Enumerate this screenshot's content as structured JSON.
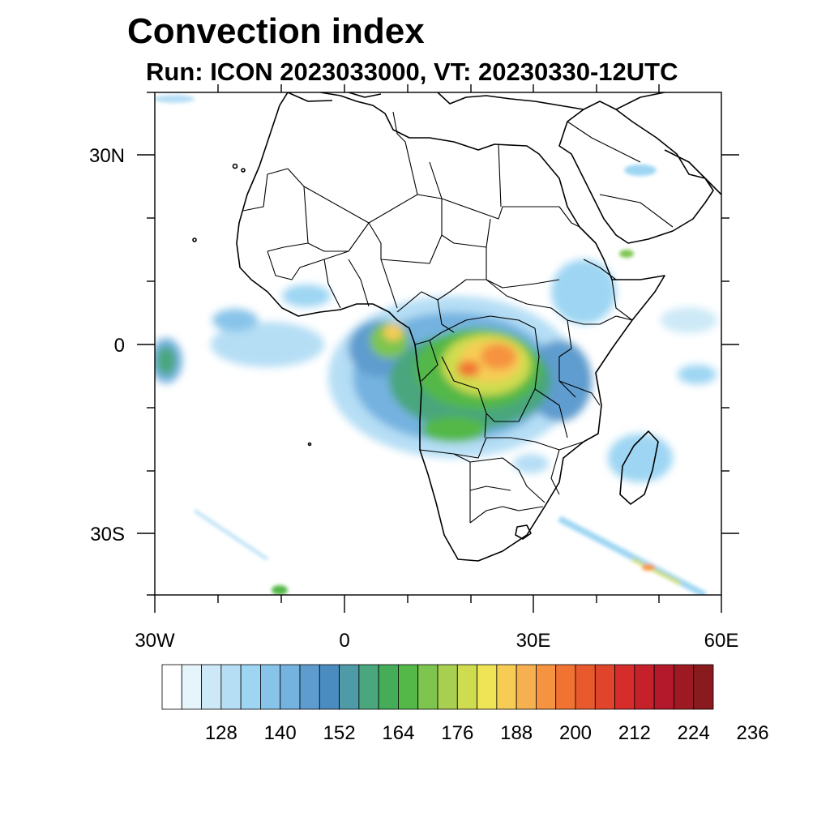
{
  "header": {
    "title": "Convection index",
    "subtitle": "Run: ICON 2023033000,  VT: 20230330-12UTC"
  },
  "map": {
    "region": "Africa",
    "lon_range": [
      -30,
      60
    ],
    "lat_range": [
      -40,
      40
    ],
    "x_tick_labels": [
      "30W",
      "0",
      "30E",
      "60E"
    ],
    "y_tick_labels": [
      "30N",
      "0",
      "30S"
    ]
  },
  "colorbar": {
    "labels": [
      "128",
      "140",
      "152",
      "164",
      "176",
      "188",
      "200",
      "212",
      "224",
      "236"
    ],
    "colors": [
      "#ffffff",
      "#e6f4fc",
      "#cde9f7",
      "#b5def5",
      "#9dd5f3",
      "#88c4ea",
      "#74b2e0",
      "#5e9ccf",
      "#4a8cbf",
      "#4e9aa6",
      "#4aa67d",
      "#45ac5a",
      "#53b847",
      "#7ec54f",
      "#a8cf4f",
      "#cfdc50",
      "#efe455",
      "#f7cc55",
      "#f7b050",
      "#f69340",
      "#f17332",
      "#e85a2d",
      "#e0452b",
      "#d62c2c",
      "#c6202b",
      "#b3192a",
      "#9e1a22",
      "#891a1e"
    ]
  }
}
